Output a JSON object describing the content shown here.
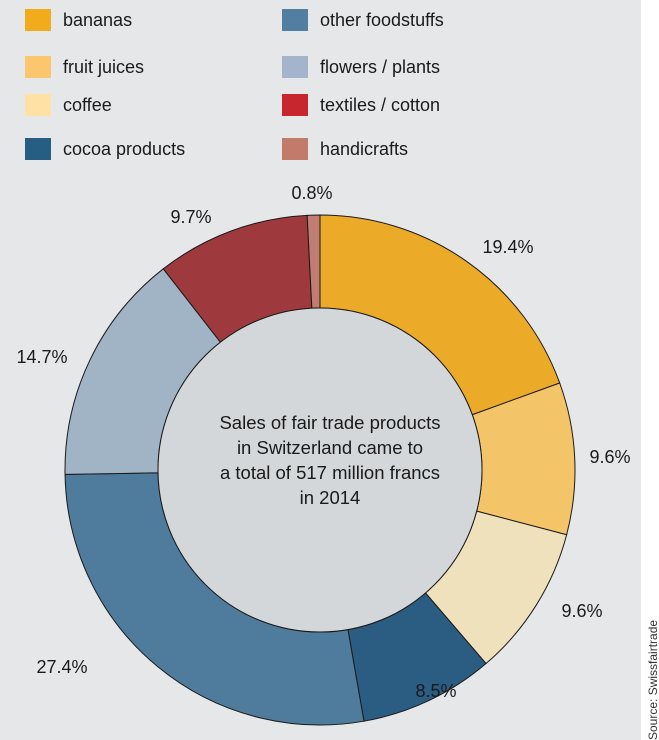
{
  "chart_data": {
    "type": "pie",
    "donut": true,
    "center_text": [
      "Sales of fair trade products",
      "in Switzerland came to",
      "a total of 517 million francs",
      "in 2014"
    ],
    "unit": "%",
    "legend_placement": "top",
    "slices": [
      {
        "label": "bananas",
        "value": 19.4,
        "display": "19.4%",
        "color": "#ebab28"
      },
      {
        "label": "fruit juices",
        "value": 9.6,
        "display": "9.6%",
        "color": "#f4c469"
      },
      {
        "label": "coffee",
        "value": 9.6,
        "display": "9.6%",
        "color": "#efe1bc"
      },
      {
        "label": "cocoa products",
        "value": 8.5,
        "display": "8.5%",
        "color": "#2b5c82"
      },
      {
        "label": "other foodstuffs",
        "value": 27.4,
        "display": "27.4%",
        "color": "#4f7c9c"
      },
      {
        "label": "flowers / plants",
        "value": 14.7,
        "display": "14.7%",
        "color": "#a1b4c6"
      },
      {
        "label": "textiles / cotton",
        "value": 9.7,
        "display": "9.7%",
        "color": "#9e3a3e"
      },
      {
        "label": "handicrafts",
        "value": 0.8,
        "display": "0.8%",
        "color": "#bf7d73"
      }
    ]
  },
  "legend": {
    "items": [
      {
        "label": "bananas",
        "color": "#f1ab1b"
      },
      {
        "label": "fruit juices",
        "color": "#fbc66d"
      },
      {
        "label": "coffee",
        "color": "#fde1a5"
      },
      {
        "label": "cocoa products",
        "color": "#255d83"
      },
      {
        "label": "other foodstuffs",
        "color": "#527fa1"
      },
      {
        "label": "flowers / plants",
        "color": "#a4b4cc"
      },
      {
        "label": "textiles / cotton",
        "color": "#c8262e"
      },
      {
        "label": "handicrafts",
        "color": "#c27a6b"
      }
    ]
  },
  "source": "Source: Swissfairtrade"
}
